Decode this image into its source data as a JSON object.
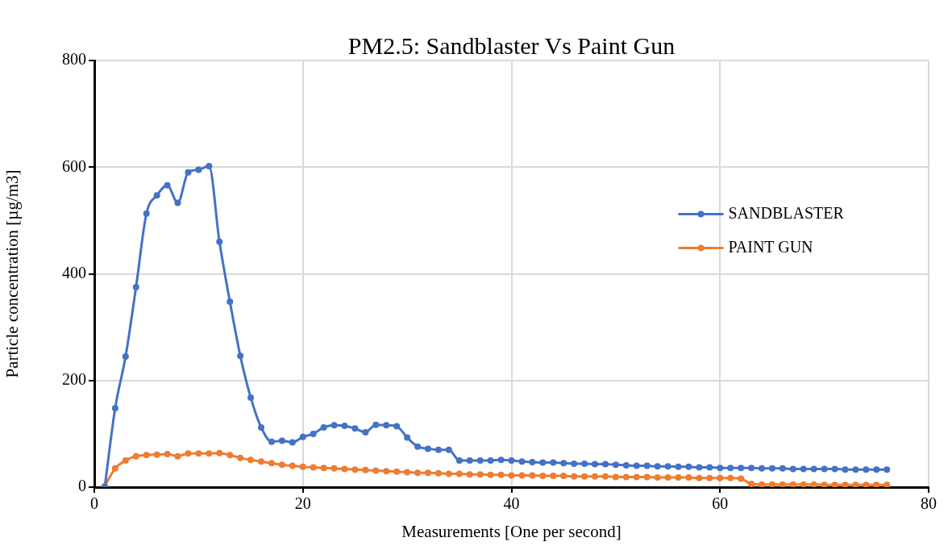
{
  "chart_data": {
    "type": "line",
    "title": "PM2.5: Sandblaster Vs Paint Gun",
    "xlabel": "Measurements [One per second]",
    "ylabel": "Particle concentration [µg/m3]",
    "x": [
      1,
      2,
      3,
      4,
      5,
      6,
      7,
      8,
      9,
      10,
      11,
      12,
      13,
      14,
      15,
      16,
      17,
      18,
      19,
      20,
      21,
      22,
      23,
      24,
      25,
      26,
      27,
      28,
      29,
      30,
      31,
      32,
      33,
      34,
      35,
      36,
      37,
      38,
      39,
      40,
      41,
      42,
      43,
      44,
      45,
      46,
      47,
      48,
      49,
      50,
      51,
      52,
      53,
      54,
      55,
      56,
      57,
      58,
      59,
      60,
      61,
      62,
      63,
      64,
      65,
      66,
      67,
      68,
      69,
      70,
      71,
      72,
      73,
      74,
      75,
      76
    ],
    "series": [
      {
        "name": "SANDBLASTER",
        "color": "#4472c4",
        "values": [
          0,
          148,
          245,
          375,
          513,
          547,
          566,
          533,
          590,
          595,
          602,
          460,
          348,
          246,
          168,
          112,
          85,
          87,
          84,
          94,
          100,
          112,
          116,
          115,
          110,
          103,
          117,
          116,
          114,
          93,
          76,
          72,
          70,
          70,
          50,
          50,
          50,
          50,
          51,
          50,
          48,
          47,
          46,
          46,
          45,
          44,
          44,
          43,
          43,
          42,
          41,
          40,
          40,
          39,
          39,
          38,
          38,
          37,
          37,
          36,
          36,
          36,
          36,
          35,
          35,
          35,
          34,
          34,
          34,
          34,
          34,
          33,
          33,
          33,
          33,
          33
        ]
      },
      {
        "name": "PAINT GUN",
        "color": "#ed7d31",
        "values": [
          2,
          35,
          50,
          58,
          60,
          61,
          62,
          58,
          63,
          63,
          63,
          64,
          60,
          55,
          51,
          48,
          45,
          42,
          40,
          38,
          37,
          36,
          35,
          34,
          33,
          32,
          31,
          30,
          29,
          28,
          27,
          27,
          26,
          25,
          25,
          24,
          24,
          23,
          23,
          22,
          22,
          22,
          21,
          21,
          21,
          20,
          20,
          20,
          20,
          19,
          19,
          19,
          19,
          18,
          18,
          18,
          18,
          17,
          17,
          17,
          17,
          16,
          6,
          5,
          5,
          5,
          5,
          5,
          5,
          4,
          4,
          4,
          4,
          4,
          4,
          4
        ]
      }
    ],
    "xlim": [
      0,
      80
    ],
    "xticks": [
      0,
      20,
      40,
      60,
      80
    ],
    "ylim": [
      0,
      800
    ],
    "yticks": [
      0,
      200,
      400,
      600,
      800
    ],
    "grid": true,
    "legend": "right",
    "marker": "circle",
    "line_style": "solid"
  }
}
